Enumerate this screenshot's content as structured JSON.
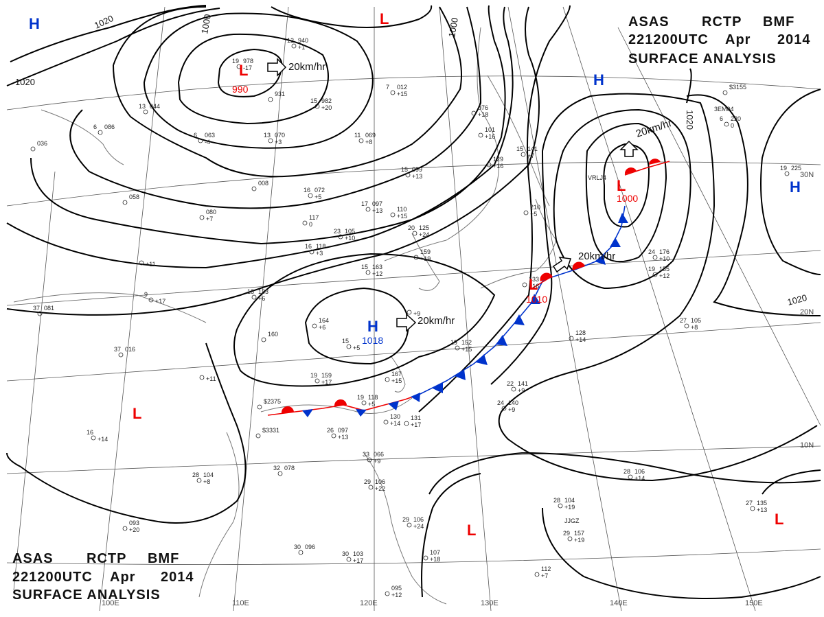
{
  "header": {
    "line1": [
      "ASAS",
      "RCTP",
      "BMF"
    ],
    "line2": [
      "221200UTC",
      "Apr",
      "2014"
    ],
    "line3": "SURFACE ANALYSIS"
  },
  "grid_labels": {
    "longitudes": [
      "100E",
      "110E",
      "120E",
      "130E",
      "140E",
      "150E"
    ],
    "latitudes": [
      "10N",
      "20N",
      "30N"
    ]
  },
  "isobar_labels": [
    "1020",
    "1000",
    "1000",
    "1020",
    "1020",
    "1020"
  ],
  "systems": [
    {
      "type": "H",
      "pressure": ""
    },
    {
      "type": "L",
      "pressure": ""
    },
    {
      "type": "L",
      "pressure": "990"
    },
    {
      "type": "H",
      "pressure": ""
    },
    {
      "type": "L",
      "pressure": "1000"
    },
    {
      "type": "H",
      "pressure": ""
    },
    {
      "type": "H",
      "pressure": "1018"
    },
    {
      "type": "L",
      "pressure": "1010"
    },
    {
      "type": "L",
      "pressure": ""
    },
    {
      "type": "L",
      "pressure": ""
    },
    {
      "type": "L",
      "pressure": ""
    }
  ],
  "motion_labels": [
    "20km/hr",
    "20km/hr",
    "20km/hr",
    "20km/hr"
  ],
  "stations": [
    {
      "temp": "12",
      "press": "940",
      "tend": "+1"
    },
    {
      "temp": "19",
      "press": "978",
      "tend": "-17"
    },
    {
      "temp": "",
      "press": "931",
      "tend": ""
    },
    {
      "temp": "15",
      "press": "982",
      "tend": "+20"
    },
    {
      "temp": "7",
      "press": "012",
      "tend": "+15"
    },
    {
      "temp": "11",
      "press": "069",
      "tend": "+8"
    },
    {
      "temp": "",
      "press": "076",
      "tend": "+18"
    },
    {
      "temp": "",
      "press": "101",
      "tend": "+16"
    },
    {
      "temp": "13",
      "press": "044",
      "tend": ""
    },
    {
      "temp": "6",
      "press": "086",
      "tend": ""
    },
    {
      "temp": "",
      "press": "036",
      "tend": ""
    },
    {
      "temp": "6",
      "press": "063",
      "tend": "-4"
    },
    {
      "temp": "13",
      "press": "070",
      "tend": "+3"
    },
    {
      "temp": "",
      "press": "008",
      "tend": ""
    },
    {
      "temp": "16",
      "press": "072",
      "tend": "+5"
    },
    {
      "temp": "",
      "press": "058",
      "tend": ""
    },
    {
      "temp": "",
      "press": "080",
      "tend": "+7"
    },
    {
      "temp": "17",
      "press": "097",
      "tend": "+13"
    },
    {
      "temp": "15",
      "press": "099",
      "tend": "+13"
    },
    {
      "temp": "",
      "press": "110",
      "tend": "+15"
    },
    {
      "temp": "",
      "press": "117",
      "tend": "0"
    },
    {
      "temp": "23",
      "press": "105",
      "tend": "+10"
    },
    {
      "temp": "20",
      "press": "125",
      "tend": "+24"
    },
    {
      "temp": "",
      "press": "159",
      "tend": "+19"
    },
    {
      "temp": "16",
      "press": "118",
      "tend": "+3"
    },
    {
      "temp": "15",
      "press": "163",
      "tend": "+12"
    },
    {
      "temp": "",
      "press": "",
      "tend": "+11"
    },
    {
      "temp": "9",
      "press": "",
      "tend": "+17"
    },
    {
      "temp": "18",
      "press": "133",
      "tend": "+6"
    },
    {
      "temp": "37",
      "press": "081",
      "tend": ""
    },
    {
      "temp": "",
      "press": "164",
      "tend": "+6"
    },
    {
      "temp": "15",
      "press": "",
      "tend": "+5"
    },
    {
      "temp": "",
      "press": "160",
      "tend": ""
    },
    {
      "temp": "37",
      "press": "016",
      "tend": ""
    },
    {
      "temp": "",
      "press": "",
      "tend": "+11"
    },
    {
      "temp": "19",
      "press": "159",
      "tend": "+17"
    },
    {
      "temp": "",
      "press": "167",
      "tend": "+15"
    },
    {
      "temp": "19",
      "press": "152",
      "tend": "+15"
    },
    {
      "temp": "",
      "press": "128",
      "tend": "+14"
    },
    {
      "temp": "22",
      "press": "141",
      "tend": "+9"
    },
    {
      "temp": "24",
      "press": "140",
      "tend": "+9"
    },
    {
      "temp": "",
      "press": "$2375",
      "tend": ""
    },
    {
      "temp": "19",
      "press": "118",
      "tend": "+5"
    },
    {
      "temp": "",
      "press": "130",
      "tend": "+14"
    },
    {
      "temp": "",
      "press": "131",
      "tend": "+17"
    },
    {
      "temp": "",
      "press": "$3331",
      "tend": ""
    },
    {
      "temp": "26",
      "press": "097",
      "tend": "+13"
    },
    {
      "temp": "16",
      "press": "",
      "tend": "+14"
    },
    {
      "temp": "32",
      "press": "078",
      "tend": ""
    },
    {
      "temp": "28",
      "press": "104",
      "tend": "+8"
    },
    {
      "temp": "33",
      "press": "066",
      "tend": "+9"
    },
    {
      "temp": "29",
      "press": "106",
      "tend": "+22"
    },
    {
      "temp": "",
      "press": "093",
      "tend": "+20"
    },
    {
      "temp": "30",
      "press": "096",
      "tend": ""
    },
    {
      "temp": "30",
      "press": "103",
      "tend": "+17"
    },
    {
      "temp": "29",
      "press": "106",
      "tend": "+24"
    },
    {
      "temp": "",
      "press": "107",
      "tend": "+18"
    },
    {
      "temp": "",
      "press": "095",
      "tend": "+12"
    },
    {
      "temp": "28",
      "press": "104",
      "tend": "+19"
    },
    {
      "temp": "29",
      "press": "157",
      "tend": "+19"
    },
    {
      "temp": "",
      "press": "112",
      "tend": "+7"
    },
    {
      "temp": "28",
      "press": "106",
      "tend": "+14"
    },
    {
      "temp": "27",
      "press": "135",
      "tend": "+13"
    },
    {
      "temp": "27",
      "press": "105",
      "tend": "+8"
    },
    {
      "temp": "24",
      "press": "176",
      "tend": "+10"
    },
    {
      "temp": "19",
      "press": "155",
      "tend": "+12"
    },
    {
      "temp": "",
      "press": "$3155",
      "tend": ""
    },
    {
      "temp": "6",
      "press": "220",
      "tend": "0"
    },
    {
      "temp": "19",
      "press": "225",
      "tend": ""
    },
    {
      "temp": "",
      "press": "210",
      "tend": "+5"
    },
    {
      "temp": "15",
      "press": "141",
      "tend": "+7"
    },
    {
      "temp": "",
      "press": "129",
      "tend": "+16"
    },
    {
      "temp": "",
      "press": "133",
      "tend": "+16"
    },
    {
      "temp": "",
      "press": "",
      "tend": "+9"
    }
  ],
  "station_ids": [
    "VRLJ4",
    "3EM04",
    "JJGZ"
  ],
  "colors": {
    "high": "#0033cc",
    "low": "#ee0000",
    "isobar": "#000000",
    "grid": "#555555",
    "coast": "#777777"
  }
}
